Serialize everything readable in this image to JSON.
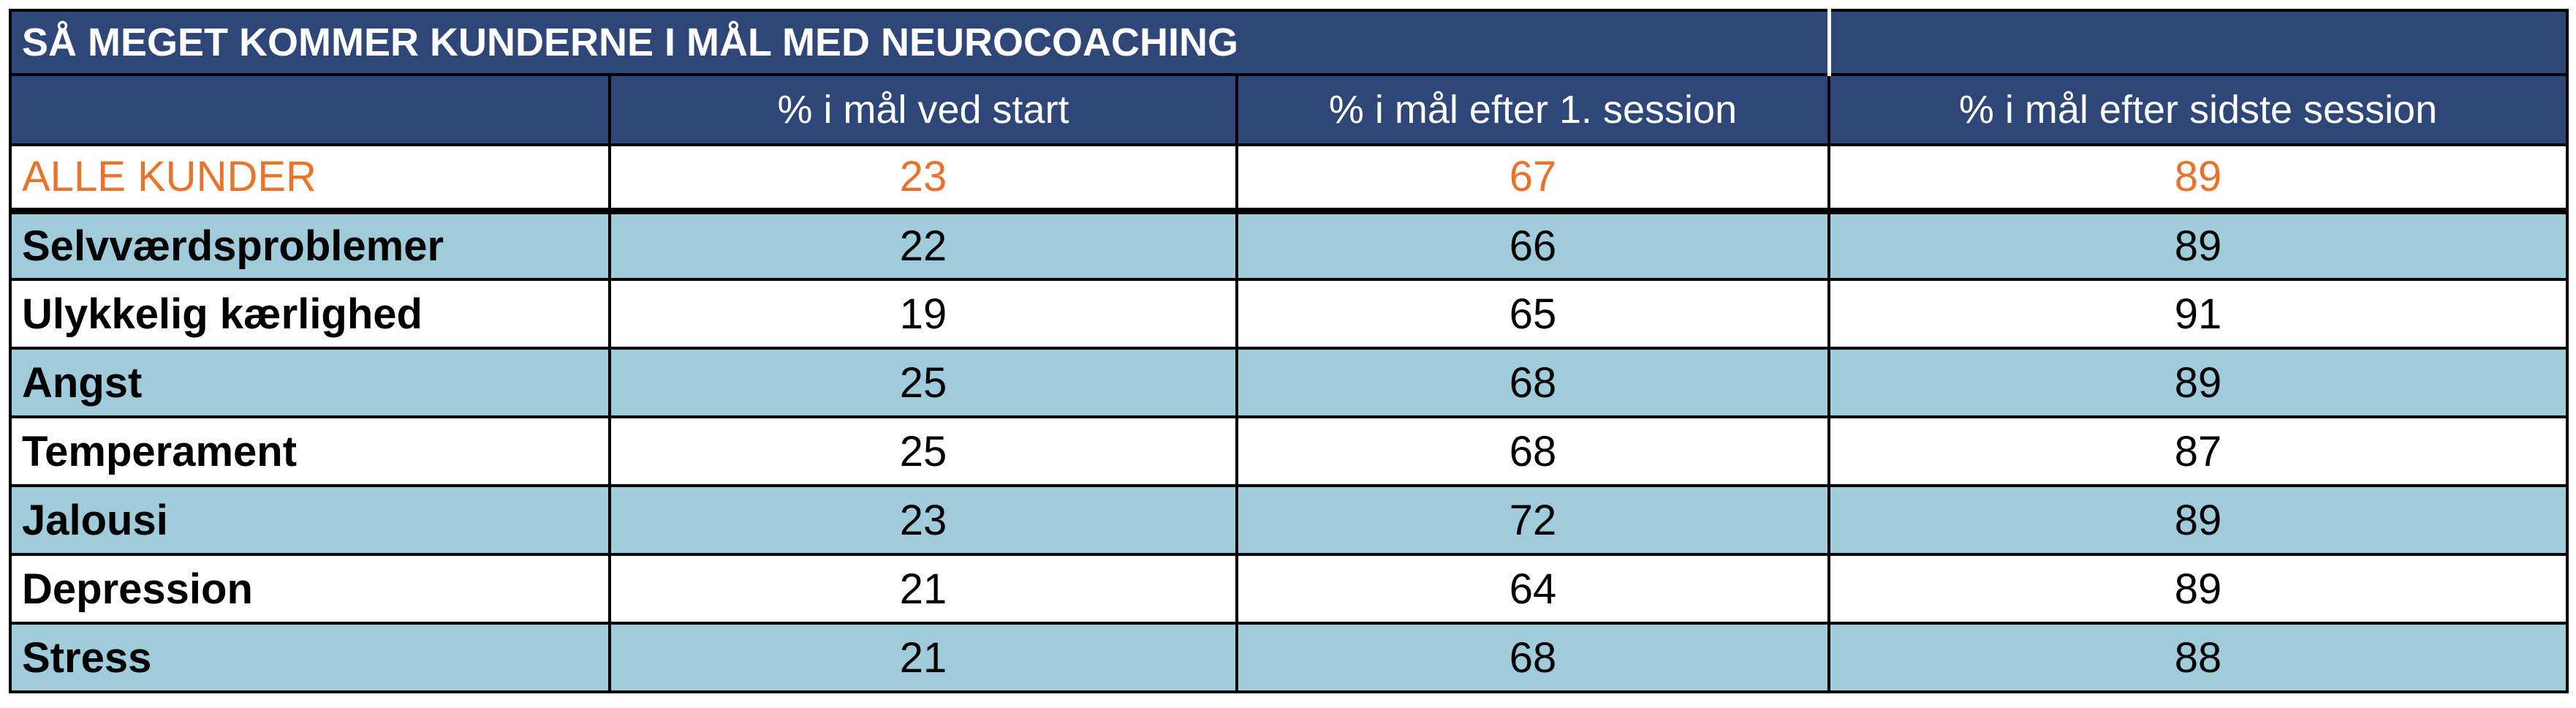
{
  "table": {
    "title": "SÅ MEGET KOMMER KUNDERNE I MÅL MED NEUROCOACHING",
    "columns": [
      "% i mål ved start",
      "% i mål efter 1. session",
      "% i mål efter sidste session"
    ],
    "summary": {
      "label": "ALLE KUNDER",
      "values": [
        "23",
        "67",
        "89"
      ]
    },
    "rows": [
      {
        "label": "Selvværdsproblemer",
        "values": [
          "22",
          "66",
          "89"
        ]
      },
      {
        "label": "Ulykkelig kærlighed",
        "values": [
          "19",
          "65",
          "91"
        ]
      },
      {
        "label": "Angst",
        "values": [
          "25",
          "68",
          "89"
        ]
      },
      {
        "label": "Temperament",
        "values": [
          "25",
          "68",
          "87"
        ]
      },
      {
        "label": "Jalousi",
        "values": [
          "23",
          "72",
          "89"
        ]
      },
      {
        "label": "Depression",
        "values": [
          "21",
          "64",
          "89"
        ]
      },
      {
        "label": "Stress",
        "values": [
          "21",
          "68",
          "88"
        ]
      }
    ]
  },
  "colors": {
    "header_bg": "#2e4678",
    "row_shade": "#9fcbdb",
    "highlight_text": "#e8742c"
  }
}
